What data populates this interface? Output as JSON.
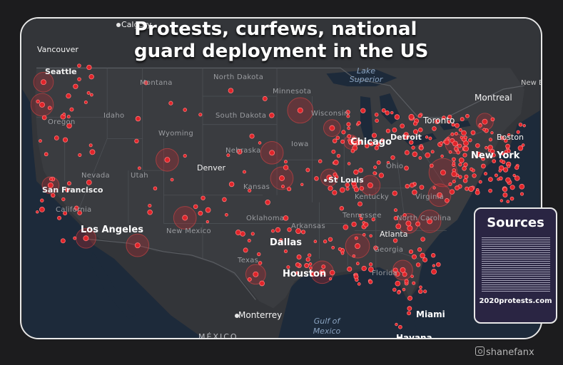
{
  "title": [
    "Protests, curfews, national",
    "guard deployment in the US"
  ],
  "states": [
    "Montana",
    "North Dakota",
    "Minnesota",
    "Idaho",
    "South Dakota",
    "Wisconsin",
    "Oregon",
    "Wyoming",
    "Nebraska",
    "Iowa",
    "Nevada",
    "Utah",
    "Kansas",
    "Ohio",
    "California",
    "Kentucky",
    "Virginia",
    "Oklahoma",
    "Tennessee",
    "Arkansas",
    "New Mexico",
    "Texas",
    "Georgia",
    "Florida",
    "North Carolina"
  ],
  "cities": [
    "Vancouver",
    "Seattle",
    "Calgary",
    "Montreal",
    "Toronto",
    "Boston",
    "New York",
    "Detroit",
    "Chicago",
    "Denver",
    "San Francisco",
    "St Louis",
    "Los Angeles",
    "Dallas",
    "Houston",
    "Atlanta",
    "Monterrey",
    "Miami",
    "Havana",
    "New Brunswick"
  ],
  "water": [
    "Lake Superior",
    "Gulf of Mexico"
  ],
  "country": "MÉXICO",
  "sources": {
    "title": "Sources",
    "url": "2020protests.com"
  },
  "credit": "shanefanx",
  "colors": {
    "marker": "#e0242a",
    "halo": "#c8282d",
    "background": "#2b2d30",
    "panel": "#2a2543"
  }
}
